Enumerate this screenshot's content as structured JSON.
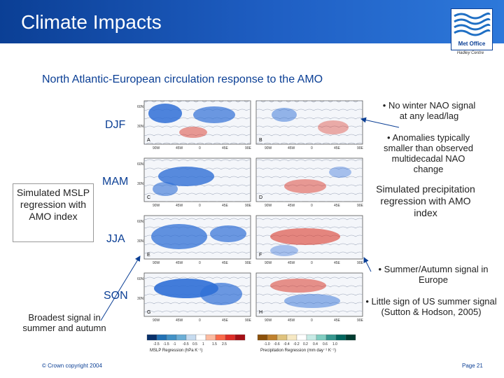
{
  "header": {
    "title": "Climate Impacts",
    "logo_text": "Met Office",
    "logo_subtext": "Hadley Centre"
  },
  "subtitle": "North Atlantic-European circulation response to the AMO",
  "seasons": {
    "djf": "DJF",
    "mam": "MAM",
    "jja": "JJA",
    "son": "SON"
  },
  "left_box": "Simulated MSLP regression with AMO index",
  "right_box": "Simulated precipitation regression with AMO index",
  "notes": {
    "n1": "• No winter NAO signal at any lead/lag",
    "n2": "• Anomalies typically smaller than observed multidecadal NAO change",
    "n3": "• Summer/Autumn signal in Europe",
    "n4": "• Little sign of US summer signal (Sutton & Hodson, 2005)"
  },
  "broad_note": "Broadest signal in summer and autumn",
  "maps": {
    "lat_labels": [
      "60N",
      "30N"
    ],
    "lon_labels": [
      "90W",
      "45W",
      "0",
      "45E",
      "90E"
    ],
    "panel_letters": [
      "A",
      "B",
      "C",
      "D",
      "E",
      "F",
      "G",
      "H"
    ],
    "mslp_ticks": [
      "-2.5",
      "-1.5",
      "-1",
      "-0.5",
      "0.5",
      "1",
      "1.5",
      "2.5"
    ],
    "precip_ticks": [
      "-1.0",
      "-0.6",
      "-0.4",
      "-0.2",
      "0.2",
      "0.4",
      "0.6",
      "1.0"
    ],
    "mslp_label": "MSLP Regression (hPa K⁻¹)",
    "precip_label": "Precipitation Regression (mm day⁻¹ K⁻¹)"
  },
  "footer": {
    "copyright": "© Crown copyright 2004",
    "page": "Page 21"
  },
  "colors": {
    "accent": "#0b3f95",
    "cool": "#2f6fd6",
    "warm": "#d93a2b"
  }
}
